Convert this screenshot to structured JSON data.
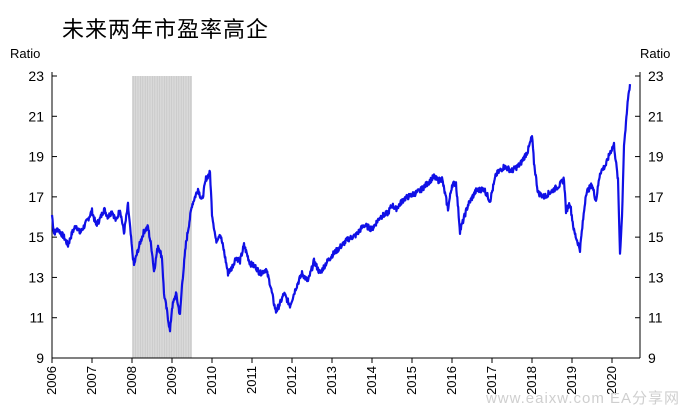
{
  "title": "未来两年市盈率高企",
  "watermark": "www.eaixw.com  EA分享网",
  "chart_data": {
    "type": "line",
    "title": "未来两年市盈率高企",
    "ylabel_left": "Ratio",
    "ylabel_right": "Ratio",
    "xlabel": "",
    "xlim": [
      2006.0,
      2020.7
    ],
    "ylim": [
      9,
      23
    ],
    "yticks": [
      9,
      11,
      13,
      15,
      17,
      19,
      21,
      23
    ],
    "xticks": [
      "2006",
      "2007",
      "2008",
      "2009",
      "2010",
      "2011",
      "2012",
      "2013",
      "2014",
      "2015",
      "2016",
      "2017",
      "2018",
      "2019",
      "2020"
    ],
    "recession_shading": [
      2008.0,
      2009.5
    ],
    "grid": false,
    "legend": "none",
    "colors": {
      "line": "#1010e6",
      "shade": "#d9d9d9"
    },
    "series": [
      {
        "name": "",
        "x": [
          2006.0,
          2006.05,
          2006.15,
          2006.3,
          2006.4,
          2006.5,
          2006.6,
          2006.7,
          2006.85,
          2007.0,
          2007.1,
          2007.2,
          2007.3,
          2007.4,
          2007.5,
          2007.6,
          2007.7,
          2007.8,
          2007.9,
          2008.0,
          2008.05,
          2008.1,
          2008.2,
          2008.3,
          2008.4,
          2008.5,
          2008.55,
          2008.65,
          2008.75,
          2008.8,
          2008.85,
          2008.9,
          2008.95,
          2009.0,
          2009.1,
          2009.2,
          2009.25,
          2009.35,
          2009.5,
          2009.65,
          2009.75,
          2009.85,
          2009.95,
          2010.0,
          2010.1,
          2010.2,
          2010.3,
          2010.4,
          2010.5,
          2010.6,
          2010.7,
          2010.8,
          2010.95,
          2011.1,
          2011.2,
          2011.35,
          2011.45,
          2011.55,
          2011.6,
          2011.7,
          2011.8,
          2011.95,
          2012.1,
          2012.25,
          2012.4,
          2012.55,
          2012.7,
          2012.85,
          2013.0,
          2013.2,
          2013.4,
          2013.6,
          2013.8,
          2014.0,
          2014.2,
          2014.4,
          2014.5,
          2014.6,
          2014.8,
          2015.0,
          2015.2,
          2015.4,
          2015.55,
          2015.65,
          2015.75,
          2015.9,
          2016.0,
          2016.1,
          2016.2,
          2016.4,
          2016.6,
          2016.8,
          2016.95,
          2017.1,
          2017.3,
          2017.5,
          2017.7,
          2017.9,
          2018.0,
          2018.05,
          2018.15,
          2018.3,
          2018.5,
          2018.7,
          2018.8,
          2018.85,
          2018.95,
          2019.05,
          2019.2,
          2019.35,
          2019.5,
          2019.6,
          2019.7,
          2019.85,
          2019.95,
          2020.05,
          2020.15,
          2020.2,
          2020.25,
          2020.3,
          2020.35,
          2020.4,
          2020.45
        ],
        "values": [
          16.1,
          15.2,
          15.4,
          15.0,
          14.6,
          15.2,
          15.6,
          15.2,
          15.7,
          16.3,
          15.6,
          15.9,
          16.4,
          16.0,
          16.3,
          15.8,
          16.4,
          15.2,
          16.6,
          14.4,
          13.6,
          14.0,
          14.7,
          15.3,
          15.5,
          14.3,
          13.3,
          14.6,
          14.0,
          12.2,
          11.6,
          11.0,
          10.3,
          11.5,
          12.2,
          11.1,
          12.6,
          14.7,
          16.6,
          17.4,
          16.8,
          17.9,
          18.2,
          16.2,
          14.8,
          15.2,
          14.3,
          13.2,
          13.5,
          14.0,
          13.8,
          14.6,
          13.7,
          13.5,
          13.2,
          13.4,
          12.7,
          11.7,
          11.3,
          11.7,
          12.2,
          11.6,
          12.5,
          13.2,
          12.8,
          13.8,
          13.2,
          13.7,
          14.1,
          14.5,
          14.9,
          15.1,
          15.6,
          15.4,
          16.0,
          16.2,
          16.6,
          16.4,
          16.9,
          17.1,
          17.3,
          17.7,
          18.0,
          17.8,
          17.9,
          16.4,
          17.6,
          17.7,
          15.3,
          16.6,
          17.3,
          17.4,
          16.8,
          18.1,
          18.5,
          18.3,
          18.6,
          19.3,
          20.0,
          18.7,
          17.2,
          17.0,
          17.3,
          17.6,
          17.9,
          16.3,
          16.7,
          15.3,
          14.4,
          17.2,
          17.6,
          16.8,
          18.2,
          18.6,
          19.2,
          19.6,
          17.8,
          14.2,
          16.0,
          19.6,
          20.6,
          21.9,
          22.6
        ]
      }
    ]
  }
}
